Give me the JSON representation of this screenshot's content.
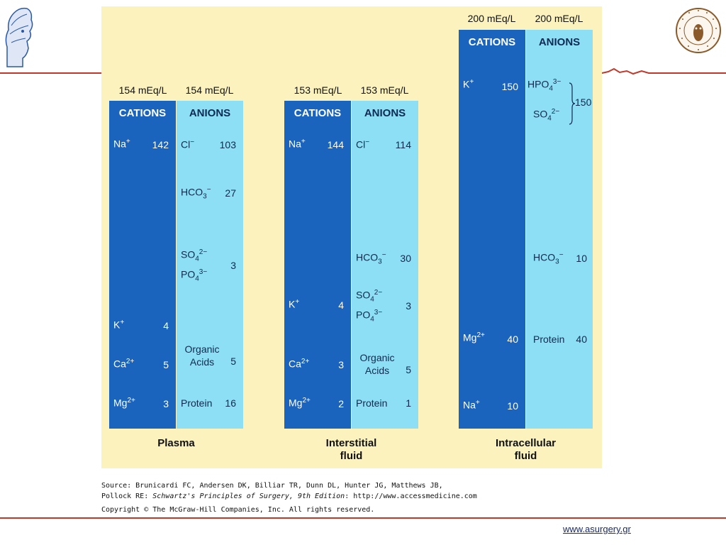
{
  "panels": [
    {
      "label": "Plasma",
      "cations_meq": "154 mEq/L",
      "anions_meq": "154 mEq/L",
      "cations_header": "CATIONS",
      "anions_header": "ANIONS",
      "cations": [
        {
          "ion": "Na+",
          "value": "142"
        },
        {
          "ion": "K+",
          "value": "4"
        },
        {
          "ion": "Ca2+",
          "value": "5"
        },
        {
          "ion": "Mg2+",
          "value": "3"
        }
      ],
      "anions": [
        {
          "ion": "Cl−",
          "value": "103"
        },
        {
          "ion": "HCO3−",
          "value": "27"
        },
        {
          "ion": "SO42−",
          "value": ""
        },
        {
          "ion": "PO43−",
          "value": "3"
        },
        {
          "ion": "Organic Acids",
          "value": "5"
        },
        {
          "ion": "Protein",
          "value": "16"
        }
      ]
    },
    {
      "label_line1": "Interstitial",
      "label_line2": "fluid",
      "cations_meq": "153 mEq/L",
      "anions_meq": "153 mEq/L",
      "cations_header": "CATIONS",
      "anions_header": "ANIONS",
      "cations": [
        {
          "ion": "Na+",
          "value": "144"
        },
        {
          "ion": "K+",
          "value": "4"
        },
        {
          "ion": "Ca2+",
          "value": "3"
        },
        {
          "ion": "Mg2+",
          "value": "2"
        }
      ],
      "anions": [
        {
          "ion": "Cl−",
          "value": "114"
        },
        {
          "ion": "HCO3−",
          "value": "30"
        },
        {
          "ion": "SO42−",
          "value": ""
        },
        {
          "ion": "PO43−",
          "value": "3"
        },
        {
          "ion": "Organic Acids",
          "value": "5"
        },
        {
          "ion": "Protein",
          "value": "1"
        }
      ]
    },
    {
      "label_line1": "Intracellular",
      "label_line2": "fluid",
      "cations_meq": "200 mEq/L",
      "anions_meq": "200 mEq/L",
      "cations_header": "CATIONS",
      "anions_header": "ANIONS",
      "cations": [
        {
          "ion": "K+",
          "value": "150"
        },
        {
          "ion": "Mg2+",
          "value": "40"
        },
        {
          "ion": "Na+",
          "value": "10"
        }
      ],
      "anions": [
        {
          "ion": "HPO43−",
          "value": ""
        },
        {
          "ion": "SO42−",
          "value": "150"
        },
        {
          "ion": "HCO3−",
          "value": "10"
        },
        {
          "ion": "Protein",
          "value": "40"
        }
      ]
    }
  ],
  "source_line1": "Source: Brunicardi FC, Andersen DK, Billiar TR, Dunn DL, Hunter JG, Matthews JB,",
  "source_line2_prefix": "Pollock RE: ",
  "source_line2_title": "Schwartz's Principles of Surgery, 9th Edition",
  "source_line2_suffix": ": http://www.accessmedicine.com",
  "copyright": "Copyright © The McGraw-Hill Companies, Inc. All rights reserved.",
  "website": "www.asurgery.gr",
  "colors": {
    "cations_bg": "#1a64bd",
    "anions_bg": "#8ddff5",
    "figure_bg": "#fbf2bd",
    "accent_line": "#c0392b"
  }
}
